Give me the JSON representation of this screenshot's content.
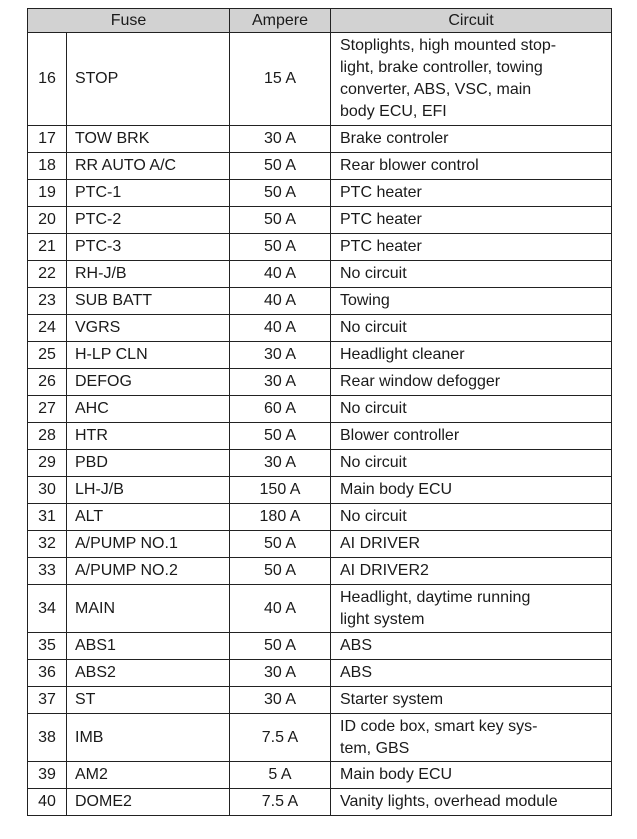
{
  "headers": {
    "fuse": "Fuse",
    "ampere": "Ampere",
    "circuit": "Circuit"
  },
  "rows": [
    {
      "no": "16",
      "fuse": "STOP",
      "ampere": "15 A",
      "circuit": "Stoplights, high mounted stop-light, brake controller, towing converter, ABS, VSC, main body ECU, EFI",
      "lines": [
        "Stoplights, high mounted stop-",
        "light, brake controller, towing",
        "converter, ABS, VSC, main",
        "body ECU, EFI"
      ]
    },
    {
      "no": "17",
      "fuse": "TOW BRK",
      "ampere": "30 A",
      "circuit": "Brake controler"
    },
    {
      "no": "18",
      "fuse": "RR AUTO A/C",
      "ampere": "50 A",
      "circuit": "Rear blower control"
    },
    {
      "no": "19",
      "fuse": "PTC-1",
      "ampere": "50 A",
      "circuit": "PTC heater"
    },
    {
      "no": "20",
      "fuse": "PTC-2",
      "ampere": "50 A",
      "circuit": "PTC heater"
    },
    {
      "no": "21",
      "fuse": "PTC-3",
      "ampere": "50 A",
      "circuit": "PTC heater"
    },
    {
      "no": "22",
      "fuse": "RH-J/B",
      "ampere": "40 A",
      "circuit": "No circuit"
    },
    {
      "no": "23",
      "fuse": "SUB BATT",
      "ampere": "40 A",
      "circuit": "Towing"
    },
    {
      "no": "24",
      "fuse": "VGRS",
      "ampere": "40 A",
      "circuit": "No circuit"
    },
    {
      "no": "25",
      "fuse": "H-LP CLN",
      "ampere": "30 A",
      "circuit": "Headlight cleaner"
    },
    {
      "no": "26",
      "fuse": "DEFOG",
      "ampere": "30 A",
      "circuit": "Rear window defogger"
    },
    {
      "no": "27",
      "fuse": "AHC",
      "ampere": "60 A",
      "circuit": "No circuit"
    },
    {
      "no": "28",
      "fuse": "HTR",
      "ampere": "50 A",
      "circuit": "Blower controller"
    },
    {
      "no": "29",
      "fuse": "PBD",
      "ampere": "30 A",
      "circuit": "No circuit"
    },
    {
      "no": "30",
      "fuse": "LH-J/B",
      "ampere": "150 A",
      "circuit": "Main body ECU"
    },
    {
      "no": "31",
      "fuse": "ALT",
      "ampere": "180 A",
      "circuit": "No circuit"
    },
    {
      "no": "32",
      "fuse": "A/PUMP NO.1",
      "ampere": "50 A",
      "circuit": "AI DRIVER"
    },
    {
      "no": "33",
      "fuse": "A/PUMP NO.2",
      "ampere": "50 A",
      "circuit": "AI DRIVER2"
    },
    {
      "no": "34",
      "fuse": "MAIN",
      "ampere": "40 A",
      "circuit": "Headlight, daytime running light system",
      "lines": [
        "Headlight, daytime running",
        "light system"
      ]
    },
    {
      "no": "35",
      "fuse": "ABS1",
      "ampere": "50 A",
      "circuit": "ABS"
    },
    {
      "no": "36",
      "fuse": "ABS2",
      "ampere": "30 A",
      "circuit": "ABS"
    },
    {
      "no": "37",
      "fuse": "ST",
      "ampere": "30 A",
      "circuit": "Starter system"
    },
    {
      "no": "38",
      "fuse": "IMB",
      "ampere": "7.5 A",
      "circuit": "ID code box, smart key sys-tem, GBS",
      "lines": [
        "ID code box, smart key sys-",
        "tem, GBS"
      ]
    },
    {
      "no": "39",
      "fuse": "AM2",
      "ampere": "5 A",
      "circuit": "Main body ECU"
    },
    {
      "no": "40",
      "fuse": "DOME2",
      "ampere": "7.5 A",
      "circuit": "Vanity lights, overhead module"
    }
  ]
}
